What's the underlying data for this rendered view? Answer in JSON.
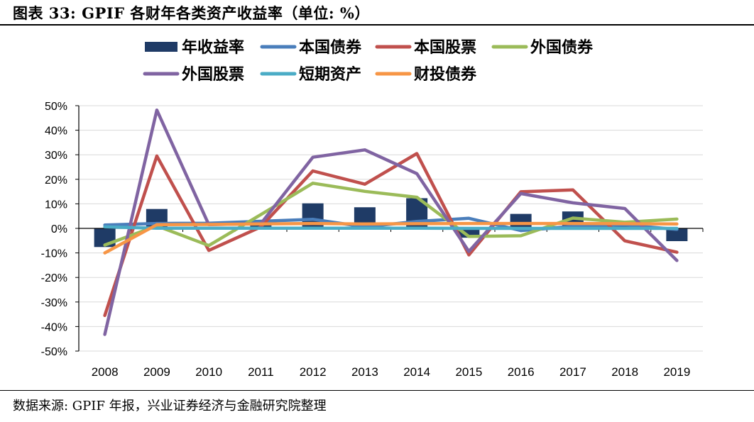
{
  "page": {
    "title": "图表 33: GPIF 各财年各类资产收益率（单位: %）",
    "source": "数据来源: GPIF 年报，兴业证券经济与金融研究院整理"
  },
  "chart_data": {
    "type": "bar+line",
    "title": "",
    "xlabel": "",
    "ylabel": "",
    "categories": [
      "2008",
      "2009",
      "2010",
      "2011",
      "2012",
      "2013",
      "2014",
      "2015",
      "2016",
      "2017",
      "2018",
      "2019"
    ],
    "ylim": [
      -50,
      50
    ],
    "yticks": [
      "50%",
      "40%",
      "30%",
      "20%",
      "10%",
      "0%",
      "-10%",
      "-20%",
      "-30%",
      "-40%",
      "-50%"
    ],
    "ytick_values": [
      50,
      40,
      30,
      20,
      10,
      0,
      -10,
      -20,
      -30,
      -40,
      -50
    ],
    "grid": true,
    "legend_position": "top",
    "bar_series": {
      "name": "年收益率",
      "color": "#1f3b66",
      "values": [
        -7.6,
        7.9,
        -0.3,
        2.3,
        10.2,
        8.6,
        12.3,
        -3.8,
        5.9,
        6.9,
        1.5,
        -5.2
      ]
    },
    "line_series": [
      {
        "name": "本国债券",
        "color": "#4a7ebb",
        "values": [
          1.4,
          2.0,
          2.1,
          2.9,
          3.7,
          0.6,
          2.8,
          4.1,
          -0.9,
          0.8,
          1.4,
          -0.4
        ]
      },
      {
        "name": "本国股票",
        "color": "#c0504d",
        "values": [
          -35.5,
          29.5,
          -9.0,
          0.6,
          23.4,
          18.0,
          30.5,
          -10.8,
          14.9,
          15.7,
          -5.1,
          -9.7
        ]
      },
      {
        "name": "外国债券",
        "color": "#9bbb59",
        "values": [
          -6.8,
          1.0,
          -7.0,
          5.6,
          18.4,
          15.1,
          12.7,
          -3.3,
          -3.0,
          4.2,
          2.5,
          3.8
        ]
      },
      {
        "name": "外国股票",
        "color": "#8064a2",
        "values": [
          -43.2,
          48.2,
          1.5,
          1.9,
          29.0,
          32.0,
          22.3,
          -9.4,
          14.2,
          10.4,
          8.1,
          -13.1
        ]
      },
      {
        "name": "短期资产",
        "color": "#4bacc6",
        "values": [
          0.6,
          0.1,
          0.1,
          0.1,
          0.1,
          0.1,
          0.1,
          0.0,
          0.0,
          0.0,
          0.0,
          0.0
        ]
      },
      {
        "name": "财投债券",
        "color": "#f79646",
        "values": [
          -10.0,
          1.5,
          1.6,
          1.8,
          2.0,
          1.8,
          1.9,
          2.0,
          2.0,
          2.0,
          1.9,
          1.8
        ]
      }
    ]
  }
}
